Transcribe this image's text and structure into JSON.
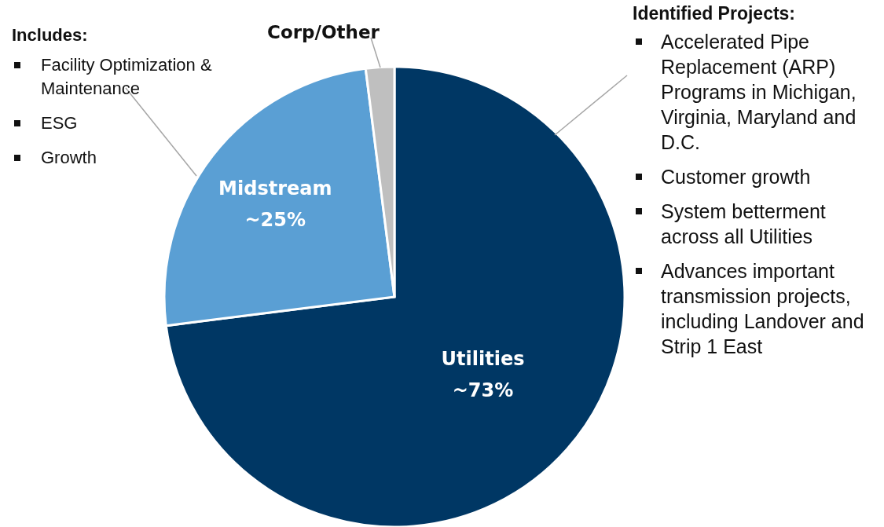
{
  "chart_data": {
    "type": "pie",
    "categories": [
      "Utilities",
      "Midstream",
      "Corp/Other"
    ],
    "values": [
      73,
      25,
      2
    ],
    "colors": [
      "#003764",
      "#5a9fd4",
      "#bfbfbf"
    ],
    "value_labels": [
      "~73%",
      "~25%",
      null
    ],
    "annotations": [
      "Includes:",
      "Facility Optimization & Maintenance",
      "ESG",
      "Growth",
      "Identified Projects:",
      "Accelerated Pipe Replacement (ARP) Programs in Michigan, Virginia, Maryland and D.C.",
      "Customer growth",
      "System betterment across all Utilities",
      "Advances important transmission projects, including Landover and Strip 1 East"
    ]
  }
}
